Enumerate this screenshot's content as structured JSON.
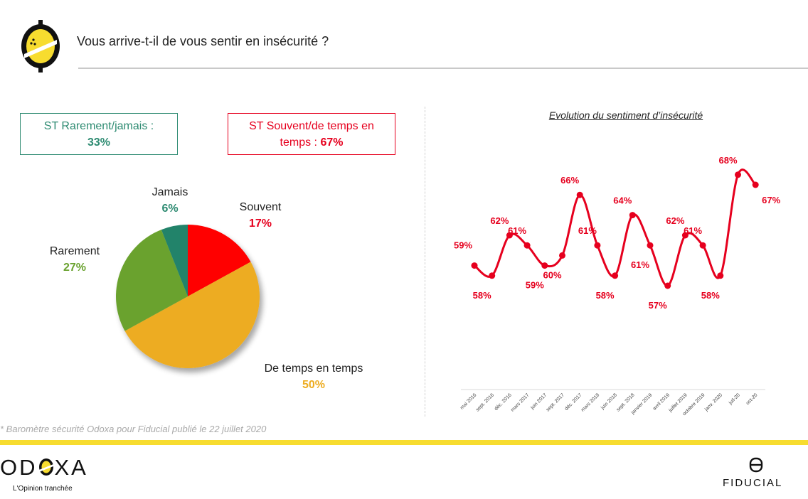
{
  "header": {
    "title": "Vous arrive-t-il de vous sentir en insécurité ?"
  },
  "summary": {
    "rare": {
      "label": "ST Rarement/jamais :",
      "value": "33%",
      "color": "#2e8b72"
    },
    "souvent": {
      "label_line1": "ST Souvent/de temps en",
      "label_line2": "temps :",
      "value": "67%",
      "color": "#e6001e"
    }
  },
  "line_title": "Evolution du sentiment d’insécurité",
  "footnote": "* Baromètre sécurité Odoxa pour Fiducial publié le 22 juillet 2020",
  "footer": {
    "odoxa_word": "OD",
    "odoxa_word_end": "XA",
    "odoxa_tagline": "L'Opinion tranchée",
    "fiducial_word": "FIDUCIAL"
  },
  "chart_data": [
    {
      "type": "pie",
      "categories": [
        "Souvent",
        "De temps en temps",
        "Rarement",
        "Jamais"
      ],
      "values": [
        17,
        50,
        27,
        6
      ],
      "value_labels": [
        "17%",
        "50%",
        "27%",
        "6%"
      ],
      "colors": [
        "#ff0000",
        "#edac21",
        "#6aa22f",
        "#23836b"
      ],
      "label_colors": [
        "#e6001e",
        "#edac21",
        "#6aa22f",
        "#2e8b72"
      ]
    },
    {
      "type": "line",
      "title": "Evolution du sentiment d’insécurité",
      "x": [
        "mai 2016",
        "sept. 2016",
        "déc. 2016",
        "mars 2017",
        "juin 2017",
        "sept. 2017",
        "déc. 2017",
        "mars 2018",
        "juin 2018",
        "sept. 2018",
        "janvier 2019",
        "avril 2019",
        "juillet 2019",
        "octobre 2019",
        "janv. 2020",
        "juil-20",
        "oct-20"
      ],
      "series": [
        {
          "values": [
            59,
            58,
            62,
            61,
            59,
            60,
            66,
            61,
            58,
            64,
            61,
            57,
            62,
            61,
            58,
            68,
            67
          ],
          "color": "#e6001e"
        }
      ],
      "ylim": [
        55,
        70
      ],
      "label_position": [
        "above",
        "below",
        "above",
        "above",
        "below",
        "below",
        "above",
        "above",
        "below",
        "above",
        "below",
        "below",
        "above",
        "above",
        "below",
        "above",
        "below"
      ]
    }
  ]
}
